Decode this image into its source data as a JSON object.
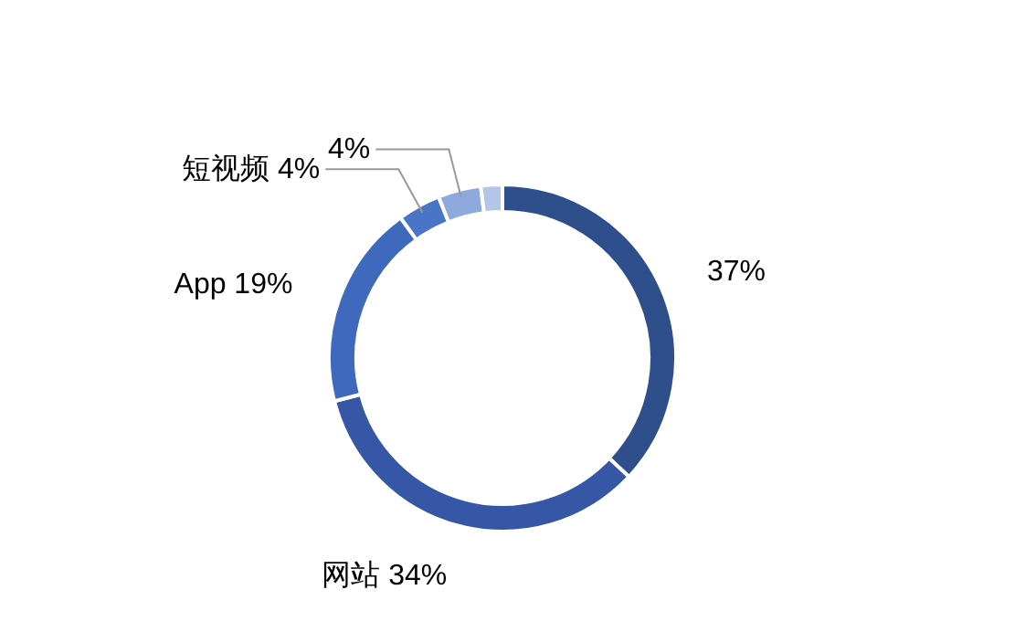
{
  "chart_data": {
    "type": "donut",
    "categories": [
      null,
      "网站",
      "App",
      "短视频",
      null,
      null
    ],
    "values": [
      37,
      34,
      19,
      4,
      4,
      2
    ],
    "value_labels": [
      "37%",
      "34%",
      "19%",
      "4%",
      "4%",
      null
    ],
    "colors": [
      "#2f4f8c",
      "#3657a5",
      "#3e69bd",
      "#4a74c6",
      "#8ea9db",
      "#b4c6e7"
    ]
  }
}
